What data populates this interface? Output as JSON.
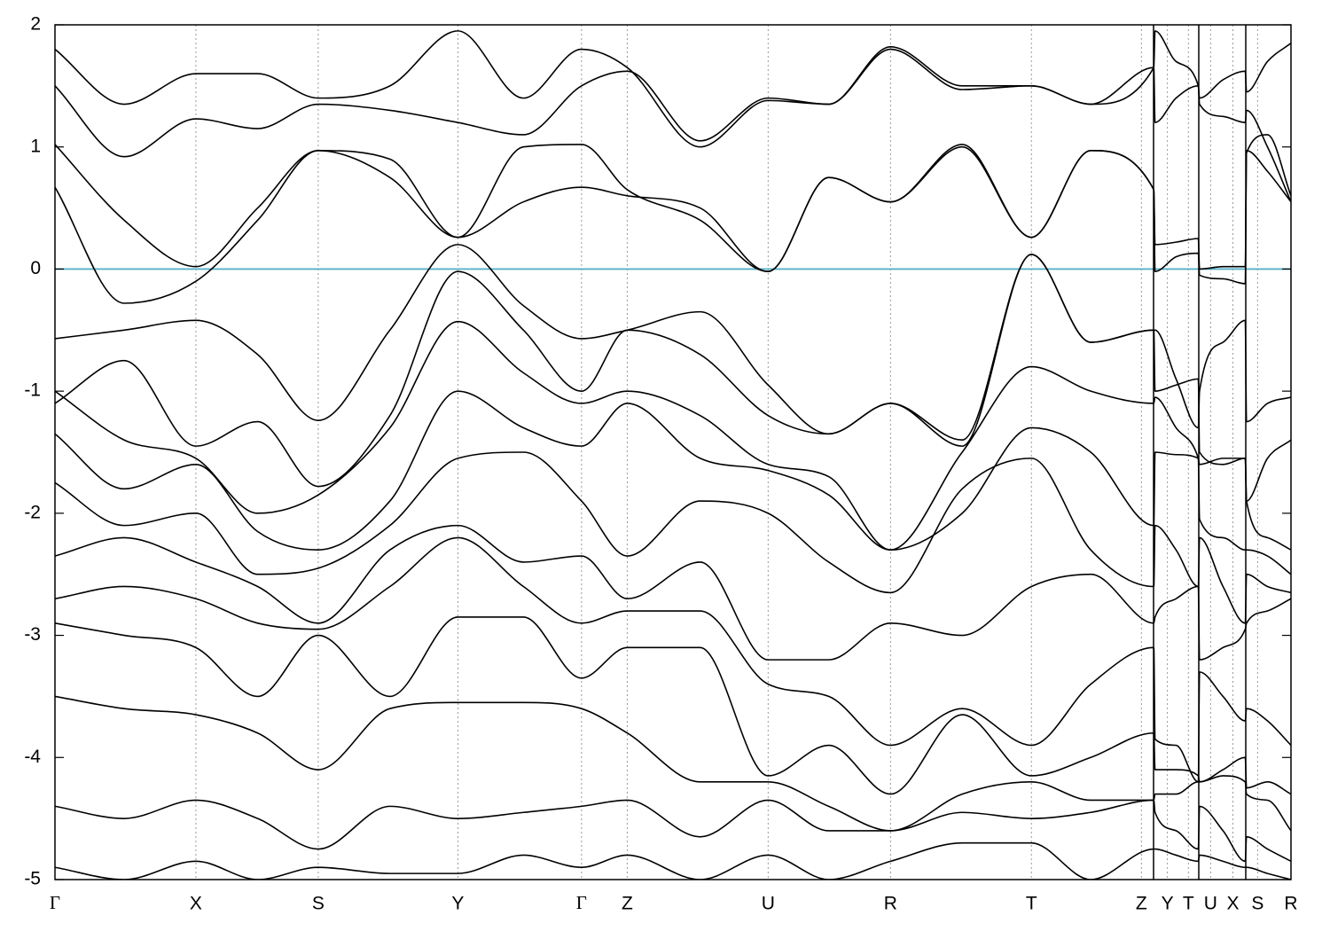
{
  "chart_data": {
    "type": "line",
    "x": [
      0,
      0.056,
      0.114,
      0.164,
      0.213,
      0.271,
      0.326,
      0.379,
      0.426,
      0.463,
      0.522,
      0.577,
      0.626,
      0.676,
      0.734,
      0.79,
      0.838,
      0.889,
      0.89,
      0.907,
      0.925,
      0.926,
      0.945,
      0.963,
      0.964,
      0.981,
      1
    ],
    "series": [
      {
        "color": "#000000",
        "values": [
          1.8,
          1.35,
          1.6,
          1.6,
          1.4,
          1.5,
          1.95,
          1.4,
          1.8,
          1.65,
          1.0,
          1.38,
          1.35,
          1.82,
          1.5,
          1.5,
          1.35,
          1.65,
          1.95,
          1.7,
          1.5,
          1.4,
          1.55,
          1.62,
          1.45,
          1.7,
          1.85
        ]
      },
      {
        "color": "#000000",
        "values": [
          1.5,
          0.92,
          1.23,
          1.15,
          1.35,
          1.3,
          1.2,
          1.1,
          1.5,
          1.62,
          1.05,
          1.4,
          1.35,
          1.8,
          1.47,
          1.5,
          1.35,
          1.65,
          1.2,
          1.4,
          1.5,
          1.35,
          1.25,
          1.2,
          1.3,
          1.0,
          0.55
        ]
      },
      {
        "color": "#000000",
        "values": [
          1.02,
          0.4,
          0.02,
          0.5,
          0.97,
          0.9,
          0.26,
          1.0,
          1.02,
          0.65,
          0.4,
          -0.02,
          0.75,
          0.55,
          1.02,
          0.26,
          0.97,
          0.65,
          0.2,
          0.22,
          0.25,
          0.0,
          0.02,
          0.02,
          0.95,
          1.1,
          0.6
        ]
      },
      {
        "color": "#000000",
        "values": [
          0.67,
          -0.28,
          -0.1,
          0.4,
          0.97,
          0.75,
          0.26,
          0.55,
          0.67,
          0.6,
          0.5,
          -0.02,
          0.75,
          0.55,
          1.0,
          0.26,
          0.97,
          0.65,
          -0.02,
          0.1,
          0.13,
          -0.05,
          -0.08,
          -0.12,
          0.97,
          0.8,
          0.55
        ]
      },
      {
        "color": "#000000",
        "values": [
          -0.57,
          -0.5,
          -0.42,
          -0.7,
          -1.24,
          -0.5,
          0.2,
          -0.3,
          -0.57,
          -0.5,
          -0.35,
          -0.95,
          -1.35,
          -1.1,
          -1.45,
          0.12,
          -0.6,
          -0.5,
          -0.5,
          -0.9,
          -1.3,
          -1.0,
          -0.6,
          -0.42,
          -1.25,
          -1.1,
          -1.05
        ]
      },
      {
        "color": "#000000",
        "values": [
          -1.1,
          -0.75,
          -1.45,
          -1.25,
          -1.78,
          -1.2,
          -0.02,
          -0.5,
          -1.0,
          -0.5,
          -0.7,
          -1.2,
          -1.35,
          -1.1,
          -1.4,
          0.12,
          -0.6,
          -0.5,
          -1.0,
          -0.95,
          -0.9,
          -1.5,
          -1.6,
          -1.55,
          -1.9,
          -1.55,
          -1.4
        ]
      },
      {
        "color": "#000000",
        "values": [
          -1.0,
          -1.4,
          -1.55,
          -2.0,
          -1.85,
          -1.3,
          -0.43,
          -0.85,
          -1.1,
          -1.0,
          -1.2,
          -1.6,
          -1.7,
          -2.3,
          -1.5,
          -0.8,
          -1.0,
          -1.1,
          -1.05,
          -1.3,
          -1.55,
          -1.6,
          -1.55,
          -1.55,
          -1.9,
          -2.2,
          -2.3
        ]
      },
      {
        "color": "#000000",
        "values": [
          -1.35,
          -1.8,
          -1.6,
          -2.15,
          -2.3,
          -1.9,
          -1.0,
          -1.3,
          -1.45,
          -1.1,
          -1.55,
          -1.65,
          -1.85,
          -2.3,
          -2.0,
          -1.3,
          -1.5,
          -2.1,
          -1.5,
          -1.52,
          -1.55,
          -2.05,
          -2.2,
          -2.3,
          -2.3,
          -2.35,
          -2.5
        ]
      },
      {
        "color": "#000000",
        "values": [
          -1.75,
          -2.1,
          -2.0,
          -2.5,
          -2.45,
          -2.1,
          -1.55,
          -1.5,
          -1.9,
          -2.35,
          -1.9,
          -2.0,
          -2.4,
          -2.65,
          -1.8,
          -1.55,
          -2.3,
          -2.6,
          -2.1,
          -2.3,
          -2.6,
          -2.2,
          -2.6,
          -2.9,
          -2.5,
          -2.6,
          -2.65
        ]
      },
      {
        "color": "#000000",
        "values": [
          -2.35,
          -2.2,
          -2.4,
          -2.6,
          -2.9,
          -2.3,
          -2.1,
          -2.4,
          -2.35,
          -2.7,
          -2.4,
          -3.2,
          -3.2,
          -2.9,
          -3.0,
          -2.6,
          -2.5,
          -2.9,
          -2.85,
          -2.7,
          -2.6,
          -3.2,
          -3.1,
          -2.95,
          -2.9,
          -2.8,
          -2.7
        ]
      },
      {
        "color": "#000000",
        "values": [
          -2.7,
          -2.6,
          -2.7,
          -2.9,
          -2.95,
          -2.6,
          -2.2,
          -2.6,
          -2.9,
          -2.8,
          -2.8,
          -3.4,
          -3.5,
          -3.9,
          -3.6,
          -3.9,
          -3.4,
          -3.1,
          -3.85,
          -3.9,
          -4.2,
          -3.3,
          -3.5,
          -3.7,
          -3.6,
          -3.7,
          -3.9
        ]
      },
      {
        "color": "#000000",
        "values": [
          -2.9,
          -3.0,
          -3.1,
          -3.5,
          -3.0,
          -3.5,
          -2.85,
          -2.85,
          -3.35,
          -3.1,
          -3.1,
          -4.15,
          -3.9,
          -4.3,
          -3.65,
          -4.15,
          -4.0,
          -3.8,
          -4.1,
          -4.1,
          -4.15,
          -4.2,
          -4.1,
          -4.0,
          -4.25,
          -4.2,
          -4.3
        ]
      },
      {
        "color": "#000000",
        "values": [
          -3.5,
          -3.6,
          -3.65,
          -3.8,
          -4.1,
          -3.6,
          -3.55,
          -3.55,
          -3.6,
          -3.8,
          -4.2,
          -4.2,
          -4.4,
          -4.6,
          -4.3,
          -4.2,
          -4.35,
          -4.35,
          -4.3,
          -4.3,
          -4.2,
          -4.2,
          -4.15,
          -4.2,
          -4.3,
          -4.35,
          -4.6
        ]
      },
      {
        "color": "#000000",
        "values": [
          -4.4,
          -4.5,
          -4.35,
          -4.5,
          -4.75,
          -4.4,
          -4.5,
          -4.45,
          -4.4,
          -4.35,
          -4.65,
          -4.35,
          -4.6,
          -4.6,
          -4.45,
          -4.5,
          -4.45,
          -4.35,
          -4.45,
          -4.6,
          -4.75,
          -4.4,
          -4.6,
          -4.85,
          -4.65,
          -4.75,
          -4.85
        ]
      },
      {
        "color": "#000000",
        "values": [
          -4.9,
          -5.0,
          -4.85,
          -5.0,
          -4.9,
          -4.95,
          -4.95,
          -4.8,
          -4.9,
          -4.8,
          -5.0,
          -4.8,
          -5.0,
          -4.85,
          -4.7,
          -4.7,
          -5.0,
          -4.75,
          -4.75,
          -4.8,
          -4.85,
          -4.8,
          -4.85,
          -4.9,
          -4.9,
          -4.95,
          -5.0
        ]
      }
    ],
    "xlim": [
      0,
      1
    ],
    "xticks": [
      {
        "value": 0,
        "label": "Γ"
      },
      {
        "value": 0.114,
        "label": "X"
      },
      {
        "value": 0.213,
        "label": "S"
      },
      {
        "value": 0.326,
        "label": "Y"
      },
      {
        "value": 0.426,
        "label": "Γ"
      },
      {
        "value": 0.463,
        "label": "Z"
      },
      {
        "value": 0.577,
        "label": "U"
      },
      {
        "value": 0.676,
        "label": "R"
      },
      {
        "value": 0.79,
        "label": "T"
      },
      {
        "value": 0.879,
        "label": "Z"
      },
      {
        "value": 0.9,
        "label": "Y"
      },
      {
        "value": 0.917,
        "label": "T"
      },
      {
        "value": 0.935,
        "label": "U"
      },
      {
        "value": 0.953,
        "label": "X"
      },
      {
        "value": 0.973,
        "label": "S"
      },
      {
        "value": 1,
        "label": "R"
      }
    ],
    "ylim": [
      -5,
      2
    ],
    "yticks": [
      2,
      1,
      0,
      -1,
      -2,
      -3,
      -4,
      -5
    ],
    "grid": "x",
    "fermi_level": 0,
    "fermi_color": "#5aafc8"
  }
}
